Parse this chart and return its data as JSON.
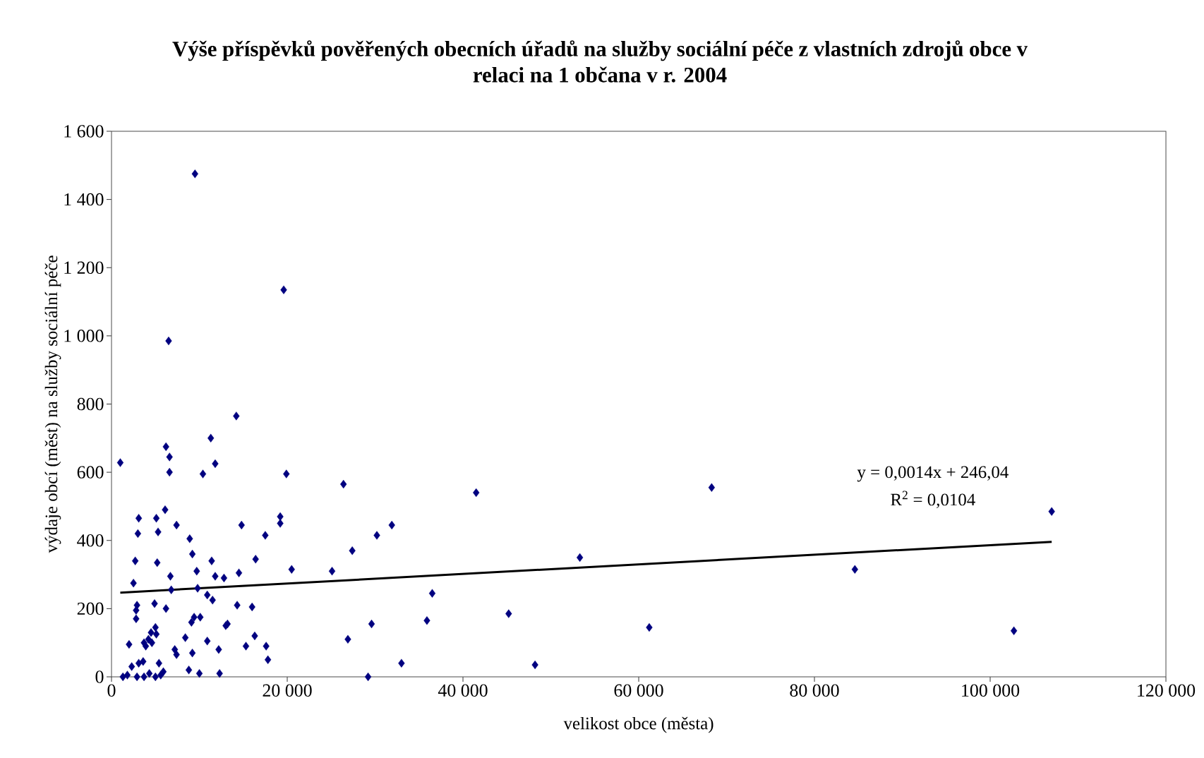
{
  "chart_data": {
    "type": "scatter",
    "title": "Výše příspěvků pověřených obecních úřadů na služby sociální péče z vlastních zdrojů obce v relaci na 1 občana v r. 2004",
    "xlabel": "velikost obce (města)",
    "ylabel": "výdaje obcí (měst) na služby sociální péče",
    "xlim": [
      0,
      120000
    ],
    "xticks": [
      {
        "value": 0,
        "label": "0"
      },
      {
        "value": 20000,
        "label": "20 000"
      },
      {
        "value": 40000,
        "label": "40 000"
      },
      {
        "value": 60000,
        "label": "60 000"
      },
      {
        "value": 80000,
        "label": "80 000"
      },
      {
        "value": 100000,
        "label": "100 000"
      },
      {
        "value": 120000,
        "label": "120 000"
      }
    ],
    "ylim": [
      0,
      1600
    ],
    "yticks": [
      {
        "value": 0,
        "label": "0"
      },
      {
        "value": 200,
        "label": "200"
      },
      {
        "value": 400,
        "label": "400"
      },
      {
        "value": 600,
        "label": "600"
      },
      {
        "value": 800,
        "label": "800"
      },
      {
        "value": 1000,
        "label": "1 000"
      },
      {
        "value": 1200,
        "label": "1 200"
      },
      {
        "value": 1400,
        "label": "1 400"
      },
      {
        "value": 1600,
        "label": "1 600"
      }
    ],
    "grid": false,
    "annotations": [
      "y = 0,0014x + 246,04",
      "R$^{2}$ = 0,0104"
    ],
    "series": [
      {
        "color": "#000080",
        "marker": "diamond",
        "x": [
          1000,
          1300,
          1800,
          2000,
          2300,
          2500,
          2700,
          2800,
          2800,
          2900,
          3000,
          3100,
          2900,
          3100,
          3600,
          3700,
          3700,
          3900,
          4200,
          4300,
          4500,
          4600,
          4900,
          5000,
          5100,
          5100,
          5200,
          5300,
          5000,
          5400,
          5600,
          5900,
          6100,
          6200,
          6200,
          6500,
          6600,
          6600,
          6700,
          6800,
          7200,
          7400,
          7400,
          8400,
          8800,
          8900,
          9100,
          9200,
          9200,
          9400,
          9500,
          9700,
          9800,
          10100,
          10000,
          10400,
          10900,
          10900,
          11300,
          11400,
          11500,
          11800,
          11800,
          12200,
          12300,
          12800,
          13000,
          13200,
          14200,
          14300,
          14500,
          14800,
          15300,
          16000,
          16300,
          16400,
          17500,
          17600,
          17800,
          19200,
          19200,
          19600,
          19900,
          20500,
          25100,
          26400,
          26900,
          27400,
          29200,
          29600,
          30200,
          31900,
          33000,
          35900,
          36500,
          41500,
          45200,
          48200,
          53300,
          61200,
          68300,
          84600,
          102700,
          107000
        ],
        "values": [
          628,
          0,
          5,
          95,
          30,
          275,
          340,
          195,
          170,
          210,
          420,
          465,
          0,
          40,
          45,
          0,
          100,
          90,
          110,
          10,
          130,
          100,
          215,
          145,
          125,
          465,
          335,
          425,
          0,
          40,
          5,
          15,
          490,
          675,
          200,
          985,
          645,
          600,
          295,
          255,
          80,
          65,
          445,
          115,
          20,
          405,
          160,
          360,
          70,
          175,
          1475,
          310,
          260,
          175,
          10,
          595,
          240,
          105,
          700,
          340,
          225,
          625,
          295,
          80,
          10,
          290,
          150,
          155,
          765,
          210,
          305,
          445,
          90,
          205,
          120,
          345,
          415,
          90,
          50,
          470,
          450,
          1135,
          595,
          315,
          310,
          565,
          110,
          370,
          0,
          155,
          415,
          445,
          40,
          165,
          245,
          540,
          185,
          35,
          350,
          145,
          555,
          315,
          135,
          485
        ]
      },
      {
        "type": "line",
        "color": "#000000",
        "marker": "none",
        "line_style": "solid",
        "x": [
          1000,
          107000
        ],
        "values": [
          247,
          396
        ]
      }
    ]
  }
}
